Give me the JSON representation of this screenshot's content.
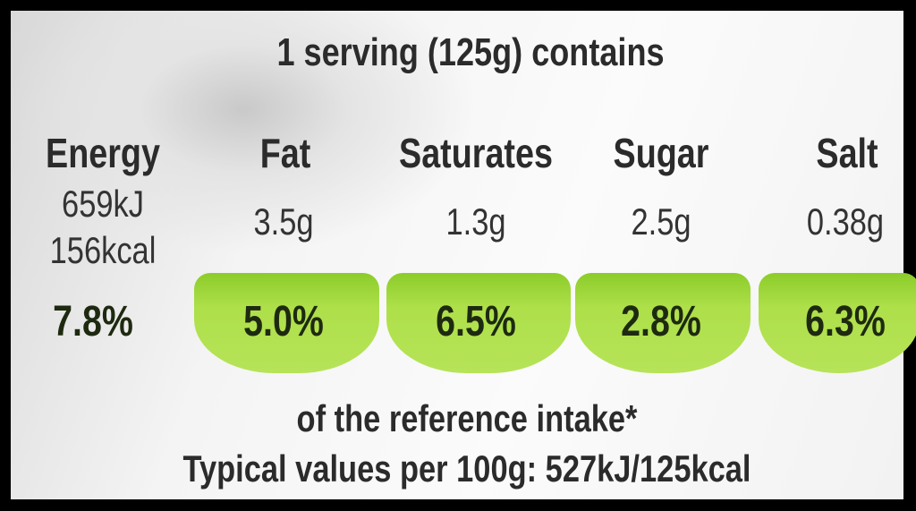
{
  "title": "1 serving (125g) contains",
  "energy": {
    "label": "Energy",
    "kj": "659kJ",
    "kcal": "156kcal",
    "percent": "7.8%"
  },
  "nutrients": [
    {
      "label": "Fat",
      "amount": "3.5g",
      "percent": "5.0%"
    },
    {
      "label": "Saturates",
      "amount": "1.3g",
      "percent": "6.5%"
    },
    {
      "label": "Sugar",
      "amount": "2.5g",
      "percent": "2.8%"
    },
    {
      "label": "Salt",
      "amount": "0.38g",
      "percent": "6.3%"
    }
  ],
  "reference_note": "of the reference intake*",
  "typical_values": "Typical values per 100g: 527kJ/125kcal",
  "colors": {
    "low_green": "#a6da45",
    "text": "#2b2b2b"
  }
}
